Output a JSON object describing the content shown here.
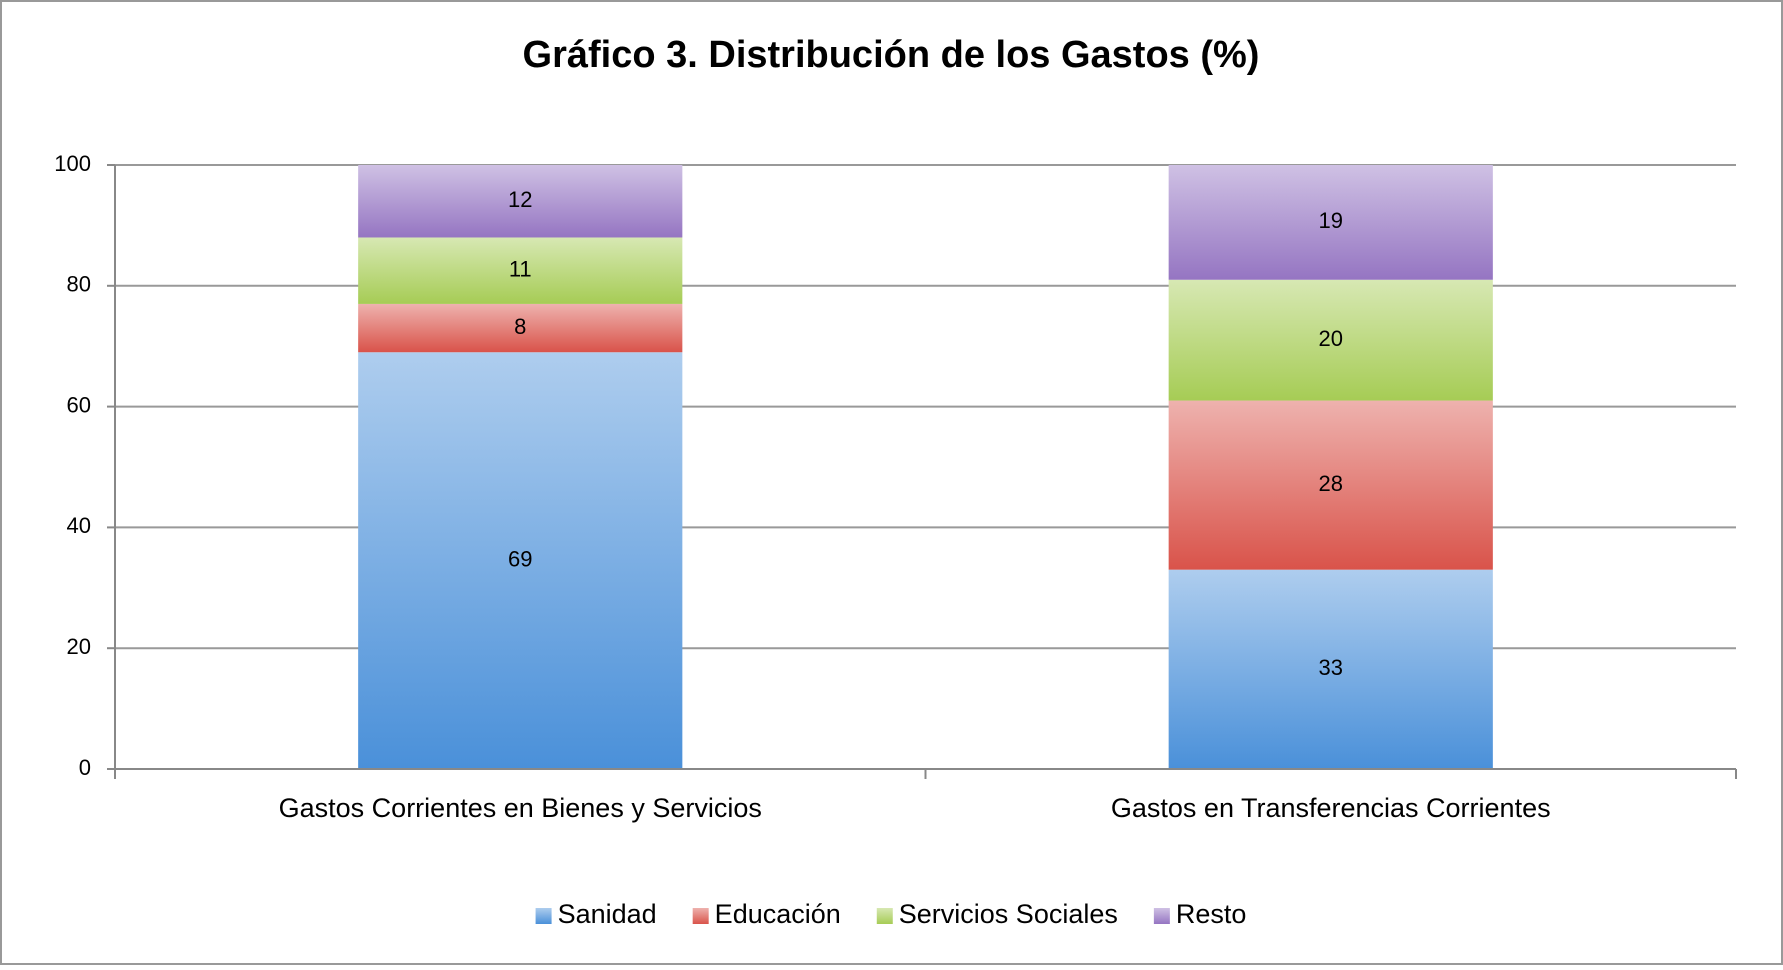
{
  "chart_data": {
    "type": "stacked_bar",
    "title": "Gráfico 3. Distribución de los Gastos (%)",
    "categories": [
      "Gastos Corrientes en Bienes y Servicios",
      "Gastos en Transferencias Corrientes"
    ],
    "series": [
      {
        "name": "Sanidad",
        "color": "#4a90d9",
        "values": [
          69,
          33
        ]
      },
      {
        "name": "Educación",
        "color": "#d9534a",
        "values": [
          8,
          28
        ]
      },
      {
        "name": "Servicios Sociales",
        "color": "#a6cc55",
        "values": [
          11,
          20
        ]
      },
      {
        "name": "Resto",
        "color": "#9575c2",
        "values": [
          12,
          19
        ]
      }
    ],
    "ylim": [
      0,
      100
    ],
    "yticks": [
      0,
      20,
      40,
      60,
      80,
      100
    ],
    "grid": true,
    "legend": "bottom"
  }
}
